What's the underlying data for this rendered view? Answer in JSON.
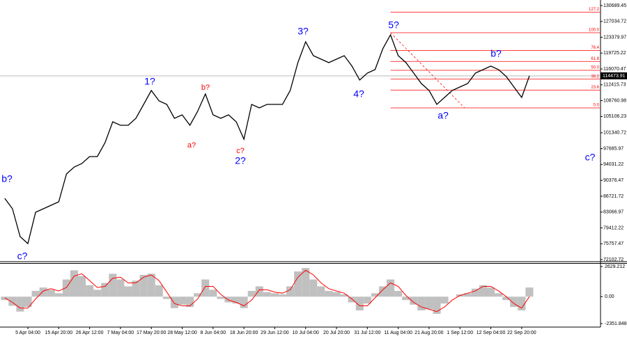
{
  "chart_data": {
    "type": "line",
    "categories": [
      null,
      null,
      null,
      "5 Apr 04:00",
      null,
      null,
      null,
      "15 Apr 20:00",
      null,
      null,
      null,
      "26 Apr 12:00",
      null,
      null,
      null,
      "7 May 04:00",
      null,
      null,
      null,
      "17 May 20:00",
      null,
      null,
      null,
      "28 May 12:00",
      null,
      null,
      null,
      "8 Jun 04:00",
      null,
      null,
      null,
      "18 Jun 20:00",
      null,
      null,
      null,
      "29 Jun 12:00",
      null,
      null,
      null,
      "10 Jul 04:00",
      null,
      null,
      null,
      "20 Jul 20:00",
      null,
      null,
      null,
      "31 Jul 12:00",
      null,
      null,
      null,
      "11 Aug 04:00",
      null,
      null,
      null,
      "21 Aug 20:00",
      null,
      null,
      null,
      "1 Sep 12:00",
      null,
      null,
      null,
      "12 Sep 04:00",
      null,
      null,
      null,
      "22 Sep 20:00",
      null
    ],
    "series": [
      {
        "color": "#000000",
        "values": [
          86230,
          83820,
          77400,
          75800,
          83020,
          83820,
          84630,
          85430,
          91850,
          93450,
          94260,
          95860,
          95860,
          99070,
          103890,
          103080,
          103080,
          104690,
          107900,
          111110,
          108700,
          107900,
          104690,
          105490,
          103080,
          106290,
          110310,
          105490,
          104690,
          105490,
          103890,
          99870,
          107900,
          107100,
          107900,
          107900,
          107900,
          111110,
          117530,
          122340,
          119130,
          118330,
          117530,
          118330,
          119130,
          116730,
          113520,
          115120,
          115920,
          120740,
          123950,
          119130,
          117530,
          115120,
          112710,
          111110,
          107900,
          109500,
          111110,
          111910,
          112710,
          115120,
          115920,
          116730,
          115920,
          114320,
          111910,
          109500,
          114470
        ]
      }
    ],
    "ylim": [
      72102.72,
      130689.45
    ],
    "yticks": [
      130689.45,
      127034.72,
      123379.97,
      119725.22,
      116070.47,
      112415.73,
      108760.98,
      105106.23,
      101340.72,
      97685.97,
      94031.22,
      90376.47,
      86721.72,
      83066.97,
      79412.22,
      75757.47,
      72102.72
    ],
    "last_price": 114473.91,
    "fib_range": [
      107100,
      124430
    ],
    "fib_color": "#ff0000",
    "fib_levels": [
      {
        "value": 127.2,
        "label": "127.2"
      },
      {
        "value": 100,
        "label": "100.0"
      },
      {
        "value": 76.4,
        "label": "76.4"
      },
      {
        "value": 61.8,
        "label": "61.8"
      },
      {
        "value": 50,
        "label": "50.0"
      },
      {
        "value": 38.2,
        "label": "38.2"
      },
      {
        "value": 23.6,
        "label": "23.6"
      },
      {
        "value": 0,
        "label": "0.0"
      }
    ],
    "annotations": [
      {
        "text": "b?",
        "color": "#0000ff"
      },
      {
        "text": "c?",
        "color": "#0000ff"
      },
      {
        "text": "1?",
        "color": "#0000ff"
      },
      {
        "text": "b?",
        "color": "#ff0000"
      },
      {
        "text": "a?",
        "color": "#ff0000"
      },
      {
        "text": "c?",
        "color": "#ff0000"
      },
      {
        "text": "2?",
        "color": "#0000ff"
      },
      {
        "text": "3?",
        "color": "#0000ff"
      },
      {
        "text": "4?",
        "color": "#0000ff"
      },
      {
        "text": "5?",
        "color": "#0000ff"
      },
      {
        "text": "a?",
        "color": "#0000ff"
      },
      {
        "text": "b?",
        "color": "#0000ff"
      },
      {
        "text": "c?",
        "color": "#0000ff"
      }
    ],
    "oscillator": {
      "histogram_color": "#c0c0c0",
      "signal_color": "#ff0000",
      "histogram": [
        -300,
        -800,
        -1300,
        -900,
        500,
        800,
        600,
        300,
        1500,
        2300,
        1800,
        1000,
        600,
        1200,
        2000,
        1500,
        900,
        1400,
        1900,
        2000,
        1000,
        -200,
        -1000,
        -700,
        -900,
        300,
        1500,
        600,
        -200,
        -500,
        -600,
        -1000,
        500,
        900,
        400,
        300,
        200,
        900,
        2200,
        2500,
        1500,
        900,
        500,
        400,
        200,
        -500,
        -1200,
        -600,
        300,
        900,
        1500,
        500,
        -300,
        -700,
        -1200,
        -1100,
        -1500,
        -600,
        0,
        200,
        300,
        700,
        1000,
        800,
        300,
        -300,
        -900,
        -1200,
        800
      ],
      "signal": [
        -100,
        -500,
        -1000,
        -1000,
        -200,
        500,
        700,
        500,
        800,
        1800,
        2000,
        1400,
        800,
        900,
        1600,
        1700,
        1200,
        1200,
        1700,
        1900,
        1400,
        400,
        -600,
        -800,
        -800,
        -200,
        900,
        900,
        200,
        -300,
        -500,
        -800,
        -300,
        600,
        600,
        400,
        300,
        600,
        1700,
        2300,
        1900,
        1200,
        700,
        500,
        300,
        -200,
        -800,
        -800,
        -100,
        600,
        1200,
        900,
        100,
        -500,
        -900,
        -1100,
        -1300,
        -900,
        -300,
        100,
        300,
        500,
        900,
        900,
        500,
        0,
        -600,
        -1000,
        0
      ],
      "ylim": [
        -2351.848,
        2629.212
      ],
      "yticks": [
        2629.212,
        {
          "value": 0,
          "label": "0.00"
        },
        -2351.848
      ]
    }
  }
}
